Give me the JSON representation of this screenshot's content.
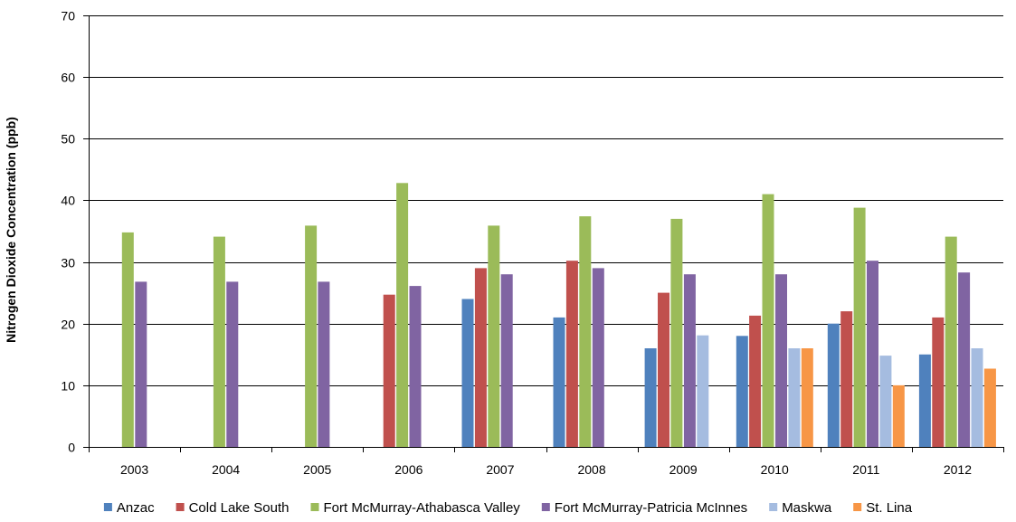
{
  "chart_data": {
    "type": "bar",
    "title": "",
    "xlabel": "",
    "ylabel": "Nitrogen Dioxide Concentration (ppb)",
    "ylim": [
      0,
      70
    ],
    "yticks": [
      0,
      10,
      20,
      30,
      40,
      50,
      60,
      70
    ],
    "grid": true,
    "legend_position": "bottom",
    "categories": [
      "2003",
      "2004",
      "2005",
      "2006",
      "2007",
      "2008",
      "2009",
      "2010",
      "2011",
      "2012"
    ],
    "series": [
      {
        "name": "Anzac",
        "color": "#4F81BD",
        "values": [
          null,
          null,
          null,
          null,
          24,
          21,
          16,
          18,
          20,
          15
        ]
      },
      {
        "name": "Cold Lake South",
        "color": "#C0504D",
        "values": [
          null,
          null,
          null,
          24.7,
          29,
          30.2,
          25,
          21.3,
          22,
          21
        ]
      },
      {
        "name": "Fort McMurray-Athabasca Valley",
        "color": "#9BBB59",
        "values": [
          34.8,
          34.1,
          35.9,
          42.8,
          35.9,
          37.4,
          37,
          41,
          38.8,
          34.1
        ]
      },
      {
        "name": "Fort McMurray-Patricia McInnes",
        "color": "#8064A2",
        "values": [
          26.8,
          26.8,
          26.8,
          26.1,
          28,
          29,
          28,
          28,
          30.2,
          28.3
        ]
      },
      {
        "name": "Maskwa",
        "color": "#A5BCE0",
        "values": [
          null,
          null,
          null,
          null,
          null,
          null,
          18.1,
          16,
          14.8,
          16
        ]
      },
      {
        "name": "St. Lina",
        "color": "#F79646",
        "values": [
          null,
          null,
          null,
          null,
          null,
          null,
          null,
          16,
          10,
          12.7
        ]
      }
    ]
  }
}
